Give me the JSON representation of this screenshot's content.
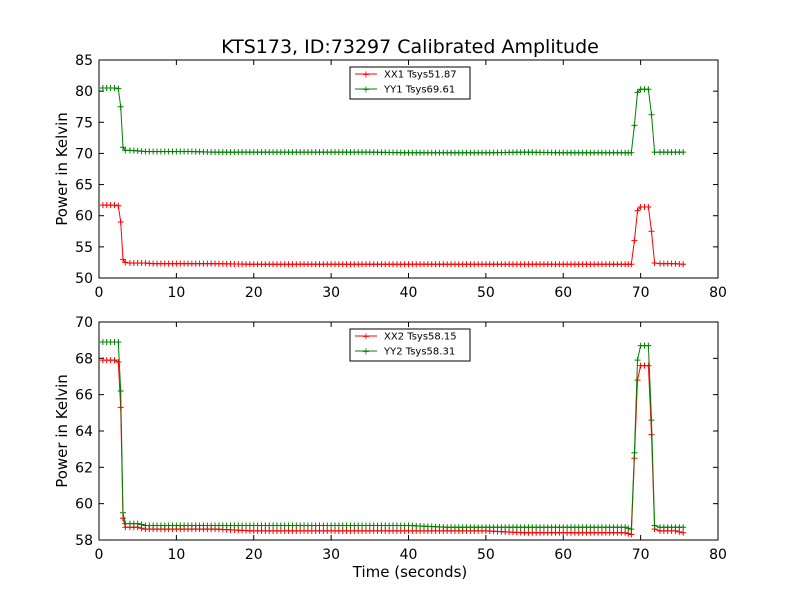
{
  "chart_data": [
    {
      "type": "line",
      "title": "KTS173, ID:73297 Calibrated Amplitude",
      "xlabel": "",
      "ylabel": "Power in Kelvin",
      "xlim": [
        0,
        80
      ],
      "ylim": [
        50,
        85
      ],
      "xticks": [
        "0",
        "10",
        "20",
        "30",
        "40",
        "50",
        "60",
        "70",
        "80"
      ],
      "yticks": [
        "50",
        "55",
        "60",
        "65",
        "70",
        "75",
        "80",
        "85"
      ],
      "legend_position": "top-center",
      "grid": false,
      "series": [
        {
          "name": "XX1 Tsys51.87",
          "color": "#ff0000",
          "marker": "plus",
          "x": [
            0.5,
            1,
            1.5,
            2,
            2.5,
            2.8,
            3.1,
            3.4,
            4,
            5,
            6,
            7,
            8,
            10,
            12,
            15,
            20,
            25,
            30,
            35,
            40,
            45,
            50,
            55,
            60,
            65,
            68,
            68.8,
            69.2,
            69.6,
            70,
            70.5,
            71,
            71.4,
            71.8,
            72.5,
            73.5,
            74.5,
            75.5
          ],
          "y": [
            61.7,
            61.7,
            61.7,
            61.7,
            61.6,
            59.0,
            53.0,
            52.5,
            52.4,
            52.4,
            52.4,
            52.3,
            52.3,
            52.3,
            52.3,
            52.3,
            52.2,
            52.2,
            52.2,
            52.2,
            52.2,
            52.2,
            52.2,
            52.2,
            52.2,
            52.2,
            52.2,
            52.2,
            56.0,
            60.8,
            61.4,
            61.4,
            61.4,
            57.5,
            52.4,
            52.3,
            52.3,
            52.3,
            52.2
          ]
        },
        {
          "name": "YY1 Tsys69.61",
          "color": "#008000",
          "marker": "plus",
          "x": [
            0.5,
            1,
            1.5,
            2,
            2.5,
            2.8,
            3.1,
            3.4,
            4,
            5,
            6,
            7,
            8,
            10,
            12,
            15,
            20,
            25,
            30,
            35,
            40,
            45,
            50,
            55,
            60,
            65,
            68,
            68.8,
            69.2,
            69.6,
            70,
            70.5,
            71,
            71.4,
            71.8,
            72.5,
            73.5,
            74.5,
            75.5
          ],
          "y": [
            80.5,
            80.5,
            80.5,
            80.5,
            80.4,
            77.5,
            71.0,
            70.5,
            70.5,
            70.4,
            70.3,
            70.3,
            70.3,
            70.3,
            70.3,
            70.2,
            70.2,
            70.2,
            70.2,
            70.2,
            70.1,
            70.1,
            70.1,
            70.2,
            70.1,
            70.1,
            70.1,
            70.1,
            74.5,
            79.8,
            80.3,
            80.3,
            80.3,
            76.2,
            70.2,
            70.2,
            70.2,
            70.2,
            70.2
          ]
        }
      ]
    },
    {
      "type": "line",
      "title": "",
      "xlabel": "Time (seconds)",
      "ylabel": "Power in Kelvin",
      "xlim": [
        0,
        80
      ],
      "ylim": [
        58,
        70
      ],
      "xticks": [
        "0",
        "10",
        "20",
        "30",
        "40",
        "50",
        "60",
        "70",
        "80"
      ],
      "yticks": [
        "58",
        "60",
        "62",
        "64",
        "66",
        "68",
        "70"
      ],
      "legend_position": "top-center",
      "grid": false,
      "series": [
        {
          "name": "XX2 Tsys58.15",
          "color": "#ff0000",
          "marker": "plus",
          "x": [
            0.5,
            1,
            1.5,
            2,
            2.5,
            2.8,
            3.1,
            3.4,
            4,
            5,
            6,
            8,
            10,
            12,
            15,
            20,
            25,
            30,
            35,
            40,
            45,
            50,
            55,
            60,
            65,
            68,
            68.8,
            69.2,
            69.6,
            70,
            70.5,
            71,
            71.4,
            71.8,
            72.5,
            73.5,
            74.5,
            75.5
          ],
          "y": [
            67.9,
            67.9,
            67.9,
            67.9,
            67.8,
            65.3,
            59.2,
            58.7,
            58.7,
            58.7,
            58.6,
            58.6,
            58.6,
            58.6,
            58.6,
            58.5,
            58.5,
            58.5,
            58.5,
            58.5,
            58.5,
            58.5,
            58.4,
            58.4,
            58.4,
            58.4,
            58.3,
            62.5,
            66.8,
            67.6,
            67.6,
            67.6,
            63.8,
            58.6,
            58.5,
            58.5,
            58.5,
            58.4
          ]
        },
        {
          "name": "YY2 Tsys58.31",
          "color": "#008000",
          "marker": "plus",
          "x": [
            0.5,
            1,
            1.5,
            2,
            2.5,
            2.8,
            3.1,
            3.4,
            4,
            5,
            6,
            8,
            10,
            12,
            15,
            20,
            25,
            30,
            35,
            40,
            45,
            50,
            55,
            60,
            65,
            68,
            68.8,
            69.2,
            69.6,
            70,
            70.5,
            71,
            71.4,
            71.8,
            72.5,
            73.5,
            74.5,
            75.5
          ],
          "y": [
            68.9,
            68.9,
            68.9,
            68.9,
            68.9,
            66.2,
            59.5,
            58.9,
            58.9,
            58.9,
            58.8,
            58.8,
            58.8,
            58.8,
            58.8,
            58.8,
            58.8,
            58.8,
            58.8,
            58.8,
            58.7,
            58.7,
            58.7,
            58.7,
            58.7,
            58.7,
            58.6,
            62.8,
            67.9,
            68.7,
            68.7,
            68.7,
            64.6,
            58.8,
            58.7,
            58.7,
            58.7,
            58.7
          ]
        }
      ]
    }
  ]
}
